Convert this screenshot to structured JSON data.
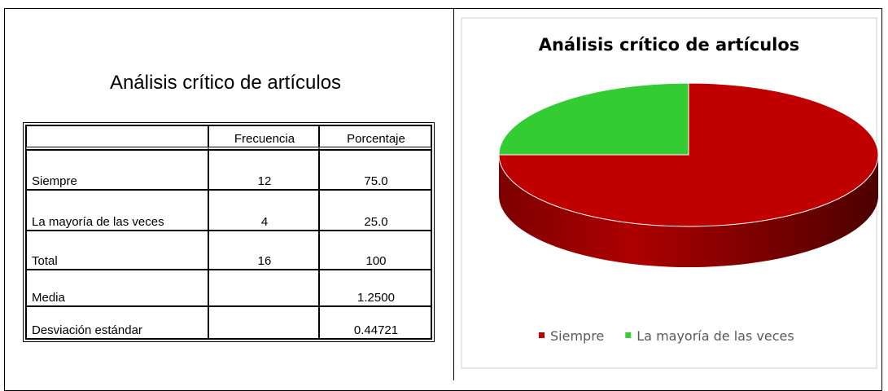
{
  "table": {
    "title": "Análisis crítico de artículos",
    "header": [
      "Frecuencia",
      "Porcentaje"
    ],
    "rows": [
      {
        "label": "Siempre",
        "frecuencia": "12",
        "porcentaje": "75.0"
      },
      {
        "label": "La mayoría de las veces",
        "frecuencia": "4",
        "porcentaje": "25.0"
      },
      {
        "label": "Total",
        "frecuencia": "16",
        "porcentaje": "100"
      },
      {
        "label": "Media",
        "porcentaje": "1.2500"
      },
      {
        "label": "Desviación estándar",
        "porcentaje": "0.44721"
      }
    ]
  },
  "chart_data": {
    "type": "pie",
    "title": "Análisis crítico de artículos",
    "categories": [
      "Siempre",
      "La mayoría de las veces"
    ],
    "values": [
      75,
      25
    ],
    "colors": [
      "#c00000",
      "#33cc33"
    ],
    "legend": "bottom"
  }
}
